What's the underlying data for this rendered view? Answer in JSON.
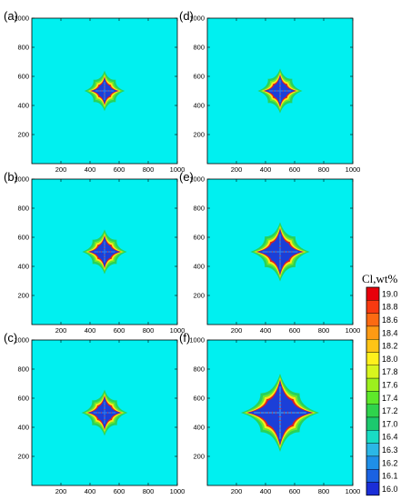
{
  "chart_data": [
    {
      "type": "heatmap",
      "panel_label": "(a)",
      "xlim": [
        0,
        1000
      ],
      "ylim": [
        0,
        1000
      ],
      "xticks": [
        200,
        400,
        600,
        800,
        1000
      ],
      "yticks": [
        200,
        400,
        600,
        800,
        1000
      ],
      "dendrite": {
        "center": [
          500,
          500
        ],
        "arm_length": 95,
        "inner_arm_length": 70,
        "arm_width": 22
      }
    },
    {
      "type": "heatmap",
      "panel_label": "(b)",
      "xlim": [
        0,
        1000
      ],
      "ylim": [
        0,
        1000
      ],
      "xticks": [
        200,
        400,
        600,
        800,
        1000
      ],
      "yticks": [
        200,
        400,
        600,
        800,
        1000
      ],
      "dendrite": {
        "center": [
          500,
          500
        ],
        "arm_length": 110,
        "inner_arm_length": 80,
        "arm_width": 24
      }
    },
    {
      "type": "heatmap",
      "panel_label": "(c)",
      "xlim": [
        0,
        1000
      ],
      "ylim": [
        0,
        1000
      ],
      "xticks": [
        200,
        400,
        600,
        800,
        1000
      ],
      "yticks": [
        200,
        400,
        600,
        800,
        1000
      ],
      "dendrite": {
        "center": [
          500,
          500
        ],
        "arm_length": 115,
        "inner_arm_length": 85,
        "arm_width": 26
      }
    },
    {
      "type": "heatmap",
      "panel_label": "(d)",
      "xlim": [
        0,
        1000
      ],
      "ylim": [
        0,
        1000
      ],
      "xticks": [
        200,
        400,
        600,
        800,
        1000
      ],
      "yticks": [
        200,
        400,
        600,
        800,
        1000
      ],
      "dendrite": {
        "center": [
          500,
          500
        ],
        "arm_length": 110,
        "inner_arm_length": 85,
        "arm_width": 18
      }
    },
    {
      "type": "heatmap",
      "panel_label": "(e)",
      "xlim": [
        0,
        1000
      ],
      "ylim": [
        0,
        1000
      ],
      "xticks": [
        200,
        400,
        600,
        800,
        1000
      ],
      "yticks": [
        200,
        400,
        600,
        800,
        1000
      ],
      "dendrite": {
        "center": [
          500,
          500
        ],
        "arm_length": 160,
        "inner_arm_length": 135,
        "arm_width": 30
      }
    },
    {
      "type": "heatmap",
      "panel_label": "(f)",
      "xlim": [
        0,
        1000
      ],
      "ylim": [
        0,
        1000
      ],
      "xticks": [
        200,
        400,
        600,
        800,
        1000
      ],
      "yticks": [
        200,
        400,
        600,
        800,
        1000
      ],
      "dendrite": {
        "center": [
          500,
          500
        ],
        "arm_length": 225,
        "inner_arm_length": 200,
        "arm_width": 42
      }
    }
  ],
  "colorbar": {
    "title": "Cl,wt%",
    "levels": [
      "19.0",
      "18.8",
      "18.6",
      "18.4",
      "18.2",
      "18.0",
      "17.8",
      "17.6",
      "17.4",
      "17.2",
      "17.0",
      "16.4",
      "16.3",
      "16.2",
      "16.1",
      "16.0"
    ],
    "colors": [
      "#e8000b",
      "#f83a10",
      "#fb6a12",
      "#fd9a14",
      "#ffc416",
      "#fff01c",
      "#d8f51e",
      "#9cf01e",
      "#5ee82a",
      "#2fd34c",
      "#1cc96e",
      "#19dcc4",
      "#2bb7e6",
      "#1f8fe8",
      "#1a62e2",
      "#1a2ed8"
    ]
  },
  "colors": {
    "background_field": "#00f0f0",
    "halo_outer": "#ffe71a",
    "halo_mid": "#6ee82c",
    "halo_green": "#28d25a",
    "rim_red": "#e02020",
    "core_blue": "#1b3fd8",
    "core_light": "#2f7ce8",
    "frame": "#000000"
  }
}
